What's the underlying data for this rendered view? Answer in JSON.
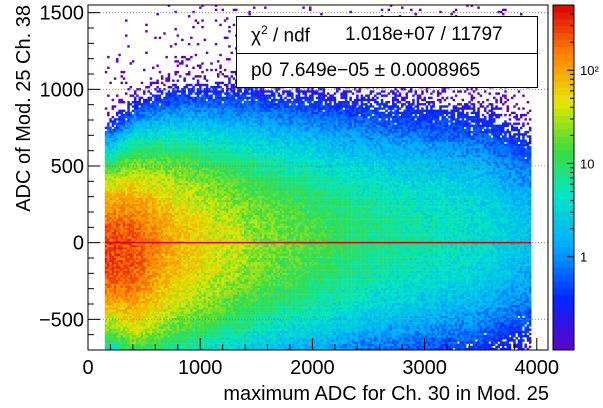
{
  "chart_data": {
    "type": "heatmap",
    "title": "",
    "xlabel": "maximum ADC for Ch. 30 in Mod. 25",
    "ylabel": "ADC of Mod. 25  Ch. 38",
    "xlim": [
      0,
      4100
    ],
    "ylim": [
      -700,
      1550
    ],
    "x_ticks": [
      0,
      1000,
      2000,
      3000,
      4000
    ],
    "x_tick_labels": [
      "0",
      "1000",
      "2000",
      "3000",
      "4000"
    ],
    "y_ticks": [
      -500,
      0,
      500,
      1000,
      1500
    ],
    "y_tick_labels": [
      "−500",
      "0",
      "500",
      "1000",
      "1500"
    ],
    "grid": "horizontal dotted",
    "colorbar": {
      "scale": "log",
      "range": [
        0.1,
        500
      ],
      "tick_labels": [
        "1",
        "10",
        "10²"
      ],
      "tick_values": [
        1,
        10,
        100
      ]
    },
    "fit_line": {
      "y": 0.0,
      "color": "#dd0000",
      "x_range": [
        150,
        3950
      ]
    },
    "density_profile": [
      {
        "x": 200,
        "y_center": -60,
        "y_spread": 220,
        "peak_count": 300
      },
      {
        "x": 400,
        "y_center": -70,
        "y_spread": 260,
        "peak_count": 250
      },
      {
        "x": 800,
        "y_center": -30,
        "y_spread": 300,
        "peak_count": 80
      },
      {
        "x": 1500,
        "y_center": 0,
        "y_spread": 320,
        "peak_count": 25
      },
      {
        "x": 2500,
        "y_center": 20,
        "y_spread": 330,
        "peak_count": 8
      },
      {
        "x": 3500,
        "y_center": 40,
        "y_spread": 320,
        "peak_count": 4
      },
      {
        "x": 3900,
        "y_center": 30,
        "y_spread": 300,
        "peak_count": 2
      }
    ]
  },
  "stats": {
    "chi2_key": "χ",
    "chi2_sup": "2",
    "chi2_rest": " / ndf",
    "chi2_value": "1.018e+07 / 11797",
    "p0_key": "p0",
    "p0_value": "7.649e−05 ± 0.0008965"
  },
  "colors": {
    "fit_line": "#dd0000",
    "frame": "#000000",
    "grid": "#808080"
  }
}
